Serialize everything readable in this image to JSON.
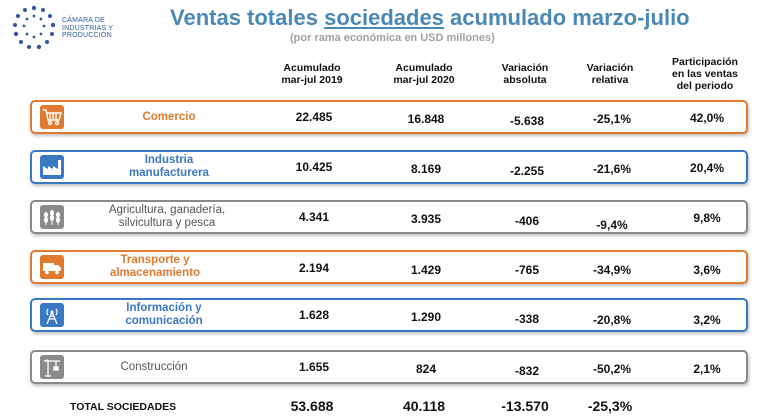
{
  "logo": {
    "line1": "CÁMARA DE",
    "line2": "INDUSTRIAS Y",
    "line3": "PRODUCCIÓN"
  },
  "header": {
    "title_pre": "Ventas totales ",
    "title_underlined": "sociedades",
    "title_post": " acumulado marzo-julio",
    "subtitle": "(por rama económica en USD millones)"
  },
  "columns": {
    "c1": [
      "Acumulado",
      "mar-jul 2019"
    ],
    "c2": [
      "Acumulado",
      "mar-jul 2020"
    ],
    "c3": [
      "Variación",
      "absoluta"
    ],
    "c4": [
      "Variación",
      "relativa"
    ],
    "c5": [
      "Participación",
      "en las ventas",
      "del periodo"
    ]
  },
  "rows": [
    {
      "name": [
        "Comercio"
      ],
      "v2019": "22.485",
      "v2020": "16.848",
      "abs": "-5.638",
      "rel": "-25,1%",
      "share": "42,0%",
      "color": "#e07a2e",
      "icon": "cart-icon"
    },
    {
      "name": [
        "Industria",
        "manufacturera"
      ],
      "v2019": "10.425",
      "v2020": "8.169",
      "abs": "-2.255",
      "rel": "-21,6%",
      "share": "20,4%",
      "color": "#3a78c3",
      "icon": "factory-icon"
    },
    {
      "name": [
        "Agricultura, ganadería,",
        "silvicultura y pesca"
      ],
      "v2019": "4.341",
      "v2020": "3.935",
      "abs": "-406",
      "rel": "-9,4%",
      "share": "9,8%",
      "color": "#8a8a8a",
      "icon": "wheat-icon"
    },
    {
      "name": [
        "Transporte y",
        "almacenamiento"
      ],
      "v2019": "2.194",
      "v2020": "1.429",
      "abs": "-765",
      "rel": "-34,9%",
      "share": "3,6%",
      "color": "#e07a2e",
      "icon": "truck-icon"
    },
    {
      "name": [
        "Información y",
        "comunicación"
      ],
      "v2019": "1.628",
      "v2020": "1.290",
      "abs": "-338",
      "rel": "-20,8%",
      "share": "3,2%",
      "color": "#3a78c3",
      "icon": "antenna-icon"
    },
    {
      "name": [
        "Construcción"
      ],
      "v2019": "1.655",
      "v2020": "824",
      "abs": "-832",
      "rel": "-50,2%",
      "share": "2,1%",
      "color": "#8a8a8a",
      "icon": "crane-icon"
    }
  ],
  "total": {
    "label": "TOTAL SOCIEDADES",
    "v2019": "53.688",
    "v2020": "40.118",
    "abs": "-13.570",
    "rel": "-25,3%"
  }
}
